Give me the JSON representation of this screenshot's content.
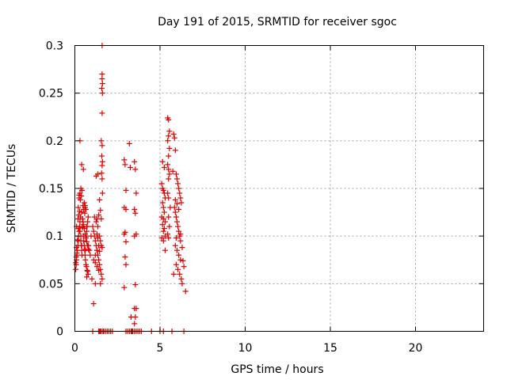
{
  "chart_data": {
    "type": "scatter",
    "title": "Day 191 of 2015, SRMTID for receiver sgoc",
    "xlabel": "GPS time / hours",
    "ylabel": "SRMTID / TECUs",
    "xlim": [
      0,
      24
    ],
    "ylim": [
      0,
      0.3
    ],
    "xticks": [
      0,
      5,
      10,
      15,
      20
    ],
    "xtick_labels": [
      "0",
      "5",
      "10",
      "15",
      "20"
    ],
    "yticks": [
      0,
      0.05,
      0.1,
      0.15,
      0.2,
      0.25,
      0.3
    ],
    "ytick_labels": [
      "0",
      "0.05",
      "0.1",
      "0.15",
      "0.2",
      "0.25",
      "0.3"
    ],
    "grid": true,
    "marker": "+",
    "color": "#e00000",
    "series": [
      {
        "name": "sgoc",
        "x": [
          0.05,
          0.08,
          0.1,
          0.12,
          0.15,
          0.18,
          0.2,
          0.22,
          0.25,
          0.28,
          0.3,
          0.33,
          0.35,
          0.38,
          0.4,
          0.42,
          0.45,
          0.48,
          0.5,
          0.52,
          0.55,
          0.58,
          0.6,
          0.62,
          0.65,
          0.68,
          0.7,
          0.72,
          0.75,
          0.78,
          0.8,
          0.85,
          0.9,
          0.95,
          0.05,
          0.1,
          0.15,
          0.2,
          0.25,
          0.3,
          0.35,
          0.4,
          0.45,
          0.5,
          0.55,
          0.6,
          0.65,
          0.7,
          0.75,
          0.8,
          0.08,
          0.12,
          0.18,
          0.22,
          0.28,
          0.32,
          0.38,
          0.42,
          0.48,
          0.52,
          0.58,
          0.62,
          0.68,
          0.72,
          0.78,
          0.1,
          0.2,
          0.3,
          0.4,
          0.5,
          0.6,
          0.7,
          0.3,
          0.35,
          0.4,
          0.55,
          0.6,
          0.65,
          0.25,
          0.45,
          0.7,
          0.75,
          1.05,
          1.1,
          1.15,
          1.2,
          1.25,
          1.3,
          1.35,
          1.4,
          1.45,
          1.5,
          1.55,
          1.6,
          1.1,
          1.2,
          1.3,
          1.4,
          1.5,
          1.15,
          1.25,
          1.35,
          1.45,
          1.55,
          1.2,
          1.3,
          1.4,
          1.5,
          1.1,
          1.25,
          1.35,
          1.45,
          1.3,
          1.4,
          1.5,
          1.3,
          1.35,
          1.45,
          1.0,
          1.2,
          1.6,
          1.6,
          1.6,
          1.62,
          1.58,
          1.62,
          1.6,
          1.55,
          1.6,
          1.58,
          1.62,
          1.6,
          1.57,
          1.6,
          1.62,
          1.55,
          1.6,
          2.9,
          2.95,
          3.0,
          2.9,
          3.0,
          2.95,
          2.9,
          3.0,
          2.95,
          3.0,
          2.9,
          3.2,
          3.25,
          3.3,
          3.5,
          3.55,
          3.6,
          3.5,
          3.55,
          3.6,
          3.5,
          3.55,
          3.5,
          3.6,
          3.5,
          3.55,
          5.1,
          5.15,
          5.2,
          5.25,
          5.3,
          5.15,
          5.2,
          5.25,
          5.1,
          5.2,
          5.3,
          5.15,
          5.25,
          5.2,
          5.3,
          5.1,
          5.2,
          5.25,
          5.15,
          5.3,
          5.45,
          5.5,
          5.55,
          5.5,
          5.45,
          5.55,
          5.5,
          5.45,
          5.5,
          5.55,
          5.5,
          5.45,
          5.5,
          5.6,
          5.5,
          5.55,
          5.45,
          5.5,
          5.8,
          5.85,
          5.9,
          5.95,
          6.0,
          6.05,
          6.1,
          6.15,
          6.2,
          6.25,
          5.85,
          5.9,
          5.95,
          6.0,
          6.05,
          6.1,
          6.15,
          6.2,
          5.9,
          6.0,
          6.1,
          6.2,
          5.95,
          6.05,
          6.15,
          6.25,
          6.3,
          5.9,
          6.0,
          6.1,
          5.8,
          5.95,
          6.2,
          6.3,
          6.35,
          6.4,
          5.75,
          6.5,
          1.05,
          1.4,
          1.45,
          1.5,
          1.55,
          1.65,
          1.7,
          1.8,
          1.9,
          2.0,
          2.1,
          2.2,
          3.0,
          3.1,
          3.2,
          3.3,
          3.35,
          3.4,
          3.5,
          3.6,
          3.7,
          3.8,
          3.9,
          4.5,
          5.0,
          5.2,
          5.7,
          6.4
        ],
        "y": [
          0.065,
          0.07,
          0.075,
          0.08,
          0.085,
          0.09,
          0.095,
          0.1,
          0.105,
          0.11,
          0.115,
          0.12,
          0.1,
          0.09,
          0.085,
          0.08,
          0.11,
          0.115,
          0.1,
          0.095,
          0.09,
          0.085,
          0.08,
          0.075,
          0.07,
          0.1,
          0.105,
          0.11,
          0.115,
          0.12,
          0.09,
          0.085,
          0.08,
          0.1,
          0.072,
          0.088,
          0.096,
          0.13,
          0.14,
          0.145,
          0.15,
          0.125,
          0.118,
          0.112,
          0.108,
          0.102,
          0.098,
          0.094,
          0.09,
          0.086,
          0.078,
          0.082,
          0.118,
          0.122,
          0.126,
          0.138,
          0.142,
          0.148,
          0.132,
          0.128,
          0.124,
          0.086,
          0.068,
          0.064,
          0.06,
          0.11,
          0.108,
          0.2,
          0.175,
          0.17,
          0.13,
          0.11,
          0.105,
          0.095,
          0.09,
          0.135,
          0.132,
          0.128,
          0.143,
          0.109,
          0.057,
          0.063,
          0.11,
          0.105,
          0.1,
          0.095,
          0.09,
          0.085,
          0.08,
          0.075,
          0.07,
          0.065,
          0.06,
          0.055,
          0.075,
          0.08,
          0.085,
          0.09,
          0.095,
          0.12,
          0.115,
          0.11,
          0.1,
          0.09,
          0.072,
          0.068,
          0.064,
          0.05,
          0.029,
          0.163,
          0.165,
          0.138,
          0.118,
          0.122,
          0.127,
          0.102,
          0.098,
          0.084,
          0.055,
          0.05,
          0.3,
          0.27,
          0.265,
          0.26,
          0.255,
          0.25,
          0.229,
          0.2,
          0.195,
          0.184,
          0.178,
          0.174,
          0.166,
          0.16,
          0.145,
          0.118,
          0.088,
          0.18,
          0.175,
          0.148,
          0.13,
          0.128,
          0.104,
          0.102,
          0.094,
          0.078,
          0.07,
          0.046,
          0.197,
          0.172,
          0.015,
          0.178,
          0.17,
          0.145,
          0.128,
          0.124,
          0.102,
          0.1,
          0.049,
          0.024,
          0.024,
          0.008,
          0.015,
          0.155,
          0.15,
          0.148,
          0.145,
          0.14,
          0.135,
          0.13,
          0.125,
          0.12,
          0.118,
          0.115,
          0.112,
          0.108,
          0.105,
          0.1,
          0.098,
          0.095,
          0.172,
          0.178,
          0.085,
          0.224,
          0.222,
          0.21,
          0.205,
          0.2,
          0.192,
          0.184,
          0.175,
          0.17,
          0.165,
          0.16,
          0.145,
          0.14,
          0.13,
          0.12,
          0.11,
          0.102,
          0.098,
          0.207,
          0.203,
          0.19,
          0.165,
          0.16,
          0.155,
          0.15,
          0.145,
          0.14,
          0.135,
          0.13,
          0.125,
          0.12,
          0.115,
          0.11,
          0.105,
          0.1,
          0.095,
          0.09,
          0.085,
          0.08,
          0.075,
          0.07,
          0.065,
          0.06,
          0.055,
          0.05,
          0.138,
          0.134,
          0.128,
          0.06,
          0.098,
          0.102,
          0.088,
          0.074,
          0.068,
          0.168,
          0.042,
          0,
          0,
          0,
          0,
          0,
          0,
          0,
          0,
          0,
          0,
          0,
          0,
          0,
          0,
          0,
          0,
          0,
          0,
          0,
          0,
          0,
          0,
          0,
          0,
          0,
          0,
          0,
          0
        ]
      }
    ]
  }
}
